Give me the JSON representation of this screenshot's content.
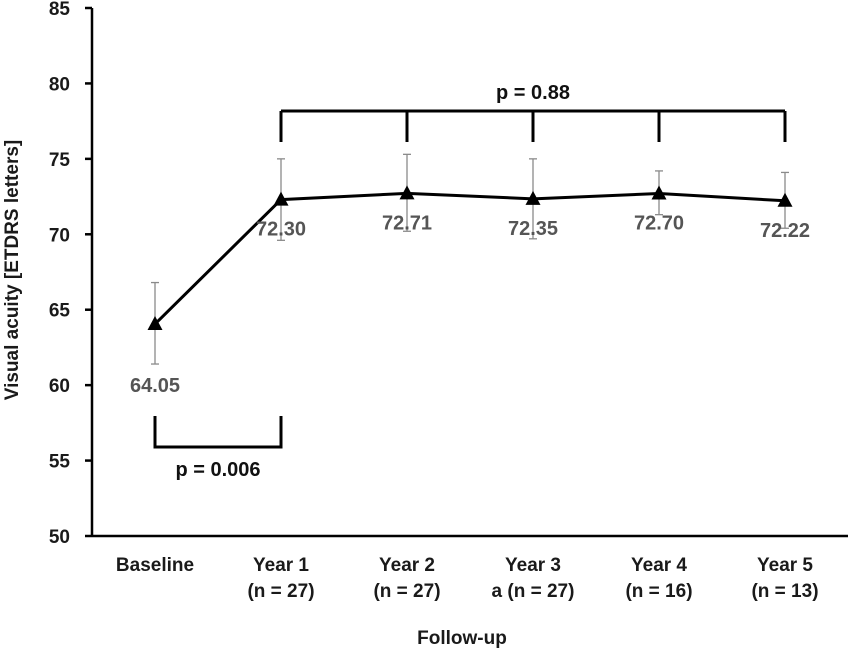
{
  "chart_data": {
    "type": "line",
    "xlabel": "Follow-up",
    "ylabel": "Visual acuity [ETDRS letters]",
    "ylim": [
      50,
      85
    ],
    "yticks": [
      50,
      55,
      60,
      65,
      70,
      75,
      80,
      85
    ],
    "grid": false,
    "categories": [
      {
        "line1": "Baseline",
        "line2": ""
      },
      {
        "line1": "Year 1",
        "line2": "(n = 27)"
      },
      {
        "line1": "Year 2",
        "line2": "(n = 27)"
      },
      {
        "line1": "Year 3",
        "line2": "a (n = 27)"
      },
      {
        "line1": "Year 4",
        "line2": "(n = 16)"
      },
      {
        "line1": "Year 5",
        "line2": "(n = 13)"
      }
    ],
    "series": [
      {
        "values": [
          64.05,
          72.3,
          72.71,
          72.35,
          72.7,
          72.22
        ],
        "error_low": [
          61.4,
          69.6,
          70.2,
          69.7,
          71.3,
          70.4
        ],
        "error_high": [
          66.8,
          75.0,
          75.3,
          75.0,
          74.2,
          74.1
        ],
        "data_labels": [
          "64.05",
          "72.30",
          "72.71",
          "72.35",
          "72.70",
          "72.22"
        ],
        "color": "#000000",
        "marker": "triangle"
      }
    ],
    "annotations": [
      {
        "text": "p = 0.006",
        "from_index": 0,
        "to_index": 1
      },
      {
        "text": "p = 0.88",
        "from_index": 1,
        "to_index": 5
      }
    ]
  }
}
